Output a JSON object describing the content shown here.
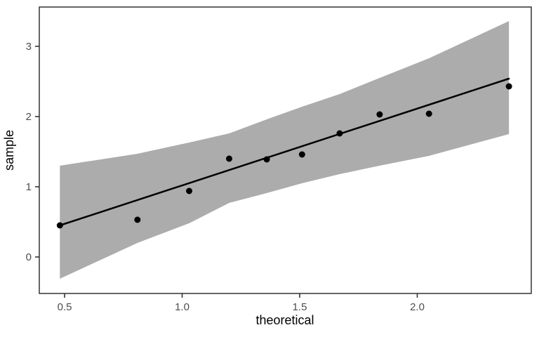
{
  "figure": {
    "background": "#FFFFFF"
  },
  "chart_data": {
    "type": "scatter",
    "subtype": "qq-plot-with-confidence-band",
    "title": "",
    "xlabel": "theoretical",
    "ylabel": "sample",
    "grid": false,
    "legend": false,
    "xlim": [
      0.3925,
      2.485
    ],
    "ylim": [
      -0.52,
      3.56
    ],
    "x_ticks": [
      0.5,
      1.0,
      1.5,
      2.0
    ],
    "x_tick_labels": [
      "0.5",
      "1.0",
      "1.5",
      "2.0"
    ],
    "y_ticks": [
      0,
      1,
      2,
      3
    ],
    "y_tick_labels": [
      "0",
      "1",
      "2",
      "3"
    ],
    "points": {
      "theoretical": [
        0.48,
        0.81,
        1.03,
        1.2,
        1.36,
        1.51,
        1.67,
        1.84,
        2.05,
        2.39
      ],
      "sample": [
        0.45,
        0.53,
        0.94,
        1.4,
        1.39,
        1.46,
        1.76,
        2.03,
        2.04,
        2.43
      ]
    },
    "reference_line": {
      "x": [
        0.48,
        2.39
      ],
      "y": [
        0.45,
        2.54
      ]
    },
    "confidence_band": {
      "x": [
        0.48,
        0.81,
        1.03,
        1.2,
        1.36,
        1.51,
        1.67,
        1.84,
        2.05,
        2.39
      ],
      "upper": [
        1.3,
        1.47,
        1.63,
        1.76,
        1.96,
        2.14,
        2.32,
        2.55,
        2.83,
        3.36
      ],
      "lower": [
        -0.31,
        0.2,
        0.48,
        0.77,
        0.91,
        1.05,
        1.18,
        1.3,
        1.44,
        1.75
      ]
    },
    "colors": {
      "band": "#ACACAC",
      "line": "#000000",
      "point": "#000000",
      "panel_border": "#333333",
      "panel_background": "#FFFFFF",
      "tick": "#333333",
      "tick_label": "#4D4D4D",
      "axis_title": "#000000"
    }
  }
}
